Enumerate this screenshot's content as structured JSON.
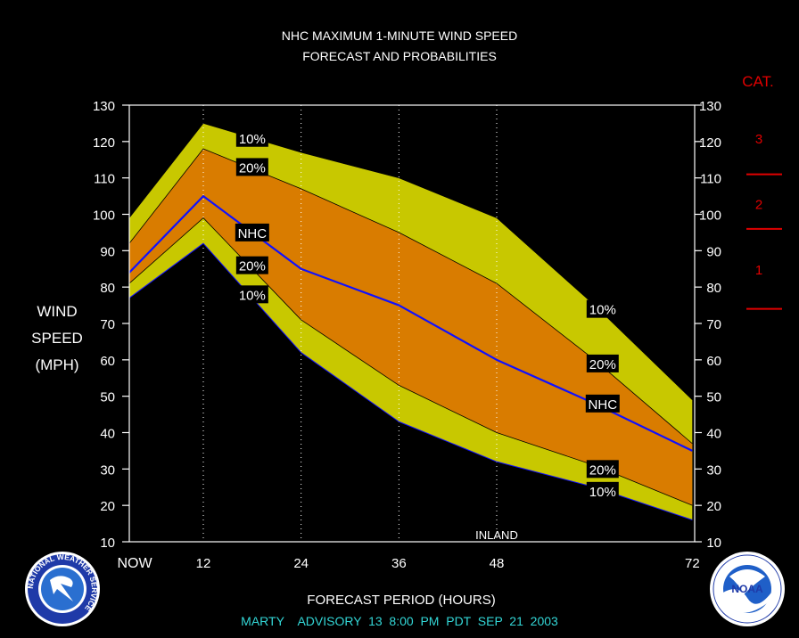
{
  "chart_data": {
    "type": "area",
    "title": "NHC MAXIMUM 1-MINUTE WIND SPEED",
    "subtitle": "FORECAST AND PROBABILITIES",
    "xlabel": "FORECAST PERIOD (HOURS)",
    "ylabel_lines": [
      "WIND",
      "SPEED",
      "(MPH)"
    ],
    "x_ticks": [
      {
        "value": 0,
        "label": "NOW"
      },
      {
        "value": 12,
        "label": "12"
      },
      {
        "value": 24,
        "label": "24"
      },
      {
        "value": 36,
        "label": "36"
      },
      {
        "value": 48,
        "label": "48"
      },
      {
        "value": 72,
        "label": "72"
      }
    ],
    "xlim": [
      0,
      72
    ],
    "ylim": [
      10,
      130
    ],
    "y_ticks": [
      10,
      20,
      30,
      40,
      50,
      60,
      70,
      80,
      90,
      100,
      110,
      120,
      130
    ],
    "vertical_gridlines_at": [
      12,
      24,
      36,
      48
    ],
    "x": [
      -2,
      12,
      24,
      36,
      48,
      60,
      72
    ],
    "series": [
      {
        "name": "10%",
        "role": "upper_outer",
        "values": [
          99,
          125,
          117,
          110,
          99,
          75,
          49
        ]
      },
      {
        "name": "20%",
        "role": "upper_inner",
        "values": [
          92,
          118,
          107,
          95,
          81,
          60,
          37
        ]
      },
      {
        "name": "NHC",
        "role": "forecast",
        "values": [
          84,
          105,
          85,
          75,
          60,
          48,
          35
        ]
      },
      {
        "name": "20%",
        "role": "lower_inner",
        "values": [
          81,
          99,
          71,
          53,
          40,
          31,
          20
        ]
      },
      {
        "name": "10%",
        "role": "lower_outer",
        "values": [
          77,
          92,
          62,
          43,
          32,
          25,
          16
        ]
      }
    ],
    "band_labels": [
      {
        "text": "10%",
        "x": 18,
        "y": 121
      },
      {
        "text": "20%",
        "x": 18,
        "y": 113
      },
      {
        "text": "NHC",
        "x": 18,
        "y": 95
      },
      {
        "text": "20%",
        "x": 18,
        "y": 86
      },
      {
        "text": "10%",
        "x": 18,
        "y": 78
      },
      {
        "text": "10%",
        "x": 61,
        "y": 74
      },
      {
        "text": "20%",
        "x": 61,
        "y": 59
      },
      {
        "text": "NHC",
        "x": 61,
        "y": 48
      },
      {
        "text": "20%",
        "x": 61,
        "y": 30
      },
      {
        "text": "10%",
        "x": 61,
        "y": 24
      }
    ],
    "annotation": {
      "text": "INLAND",
      "x": 48,
      "y": 12
    },
    "category_header": "CAT.",
    "categories": [
      {
        "label": "3",
        "y": 121
      },
      {
        "label": "2",
        "y": 103
      },
      {
        "label": "1",
        "y": 85
      }
    ],
    "category_thresholds": [
      111,
      96,
      74
    ],
    "footer": "MARTY    ADVISORY  13  8:00  PM  PDT  SEP  21  2003",
    "colors": {
      "outer_band": "#c8c800",
      "inner_band": "#d97c00",
      "forecast_line": "#1010ff",
      "category": "#e00000",
      "footer": "#33d6d6",
      "background": "#000000",
      "axis": "#ffffff"
    },
    "logos": [
      {
        "name": "nws-logo",
        "text": "NATIONAL WEATHER SERVICE"
      },
      {
        "name": "noaa-logo",
        "text": "NOAA"
      }
    ]
  }
}
